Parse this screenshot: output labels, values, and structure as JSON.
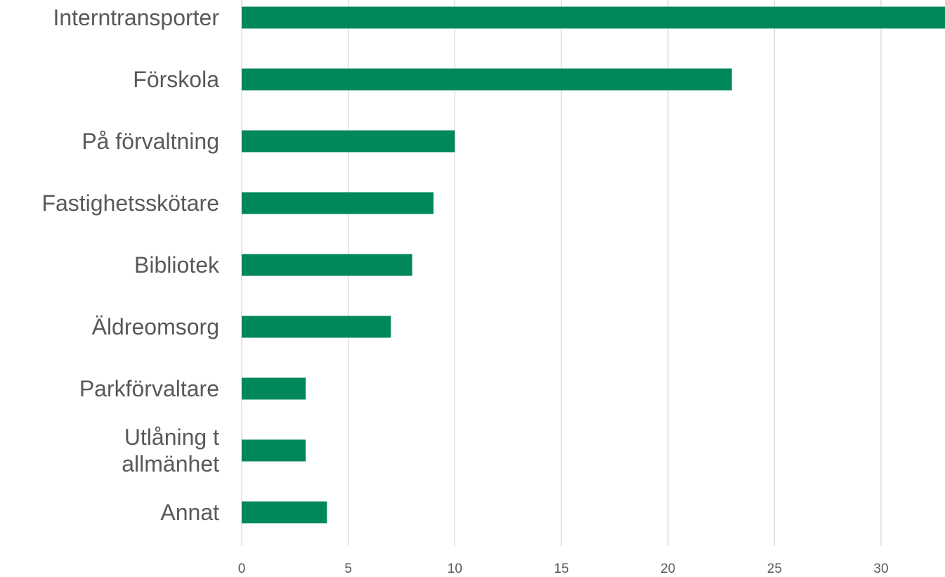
{
  "chart_data": {
    "type": "bar",
    "orientation": "horizontal",
    "categories": [
      "Interntransporter",
      "Förskola",
      "På förvaltning",
      "Fastighetsskötare",
      "Bibliotek",
      "Äldreomsorg",
      "Parkförvaltare",
      "Utlåning t allmänhet",
      "Annat"
    ],
    "category_lines": [
      [
        "Interntransporter"
      ],
      [
        "Förskola"
      ],
      [
        "På förvaltning"
      ],
      [
        "Fastighetsskötare"
      ],
      [
        "Bibliotek"
      ],
      [
        "Äldreomsorg"
      ],
      [
        "Parkförvaltare"
      ],
      [
        "Utlåning t",
        "allmänhet"
      ],
      [
        "Annat"
      ]
    ],
    "values": [
      33,
      23,
      10,
      9,
      8,
      7,
      3,
      3,
      4
    ],
    "xlim": [
      0,
      33
    ],
    "xticks": [
      "0",
      "5",
      "10",
      "15",
      "20",
      "25",
      "30"
    ],
    "grid": "vertical",
    "legend": "none",
    "title": "",
    "xlabel": "",
    "ylabel": "",
    "colors": {
      "bar": "#00875a",
      "grid": "#d9d9d9",
      "text": "#595959"
    }
  }
}
